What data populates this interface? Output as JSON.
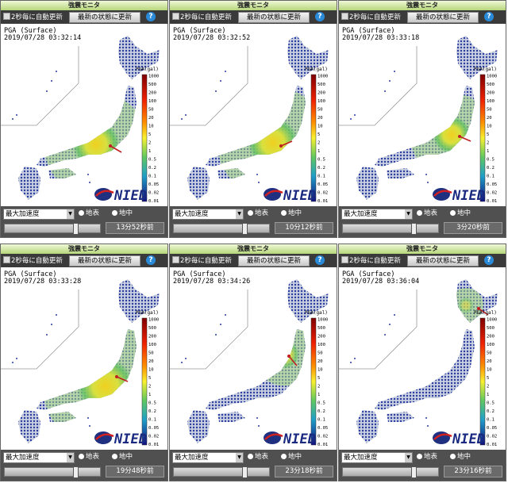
{
  "ui": {
    "window_title": "強震モニタ",
    "auto_update": "2秒毎に自動更新",
    "refresh_button": "最新の状態に更新",
    "help": "?",
    "layer": "PGA (Surface)",
    "scale_unit": "PGA(gal)",
    "logo": "NIED",
    "measure_select": "最大加速度",
    "radio_surface": "地表",
    "radio_underground": "地中"
  },
  "scale": {
    "labels": [
      "1000",
      "500",
      "200",
      "100",
      "50",
      "20",
      "10",
      "5",
      "2",
      "1",
      "0.5",
      "0.2",
      "0.1",
      "0.05",
      "0.02",
      "0.01"
    ]
  },
  "panels": [
    {
      "timestamp": "2019/07/28 03:32:14",
      "elapsed": "13分52秒前"
    },
    {
      "timestamp": "2019/07/28 03:32:52",
      "elapsed": "10分12秒前"
    },
    {
      "timestamp": "2019/07/28 03:33:18",
      "elapsed": "3分20秒前"
    },
    {
      "timestamp": "2019/07/28 03:33:28",
      "elapsed": "19分48秒前"
    },
    {
      "timestamp": "2019/07/28 03:34:26",
      "elapsed": "23分18秒前"
    },
    {
      "timestamp": "2019/07/28 03:36:04",
      "elapsed": "23分16秒前"
    }
  ]
}
